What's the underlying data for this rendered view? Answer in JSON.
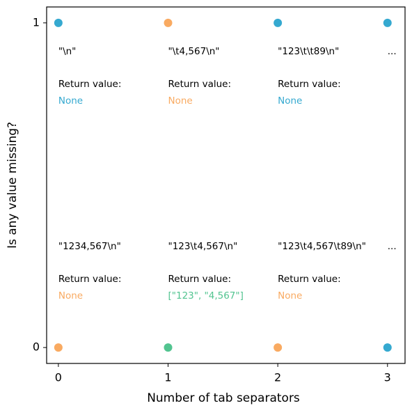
{
  "chart_data": {
    "type": "scatter",
    "xlabel": "Number of tab separators",
    "ylabel": "Is any value missing?",
    "x": [
      0,
      1,
      2,
      3,
      0,
      1,
      2,
      3
    ],
    "y": [
      1,
      1,
      1,
      1,
      0,
      0,
      0,
      0
    ],
    "colors": [
      "#35a9d0",
      "#f9aa61",
      "#35a9d0",
      "#35a9d0",
      "#f9aa61",
      "#52c490",
      "#f9aa61",
      "#35a9d0"
    ],
    "annotations": [
      {
        "input": "\"\\n\"",
        "return_label": "Return value:",
        "return_value": "None"
      },
      {
        "input": "\"\\t4,567\\n\"",
        "return_label": "Return value:",
        "return_value": "None"
      },
      {
        "input": "\"123\\t\\t89\\n\"",
        "return_label": "Return value:",
        "return_value": "None"
      },
      {
        "input": "..."
      },
      {
        "input": "\"1234,567\\n\"",
        "return_label": "Return value:",
        "return_value": "None"
      },
      {
        "input": "\"123\\t4,567\\n\"",
        "return_label": "Return value:",
        "return_value": "[\"123\", \"4,567\"]"
      },
      {
        "input": "\"123\\t4,567\\t89\\n\"",
        "return_label": "Return value:",
        "return_value": "None"
      },
      {
        "input": "..."
      }
    ],
    "xlim": [
      -0.107,
      3.16
    ],
    "ylim": [
      -0.049,
      1.049
    ],
    "xticks": [
      0,
      1,
      2,
      3
    ],
    "yticks": [
      0,
      1
    ]
  }
}
